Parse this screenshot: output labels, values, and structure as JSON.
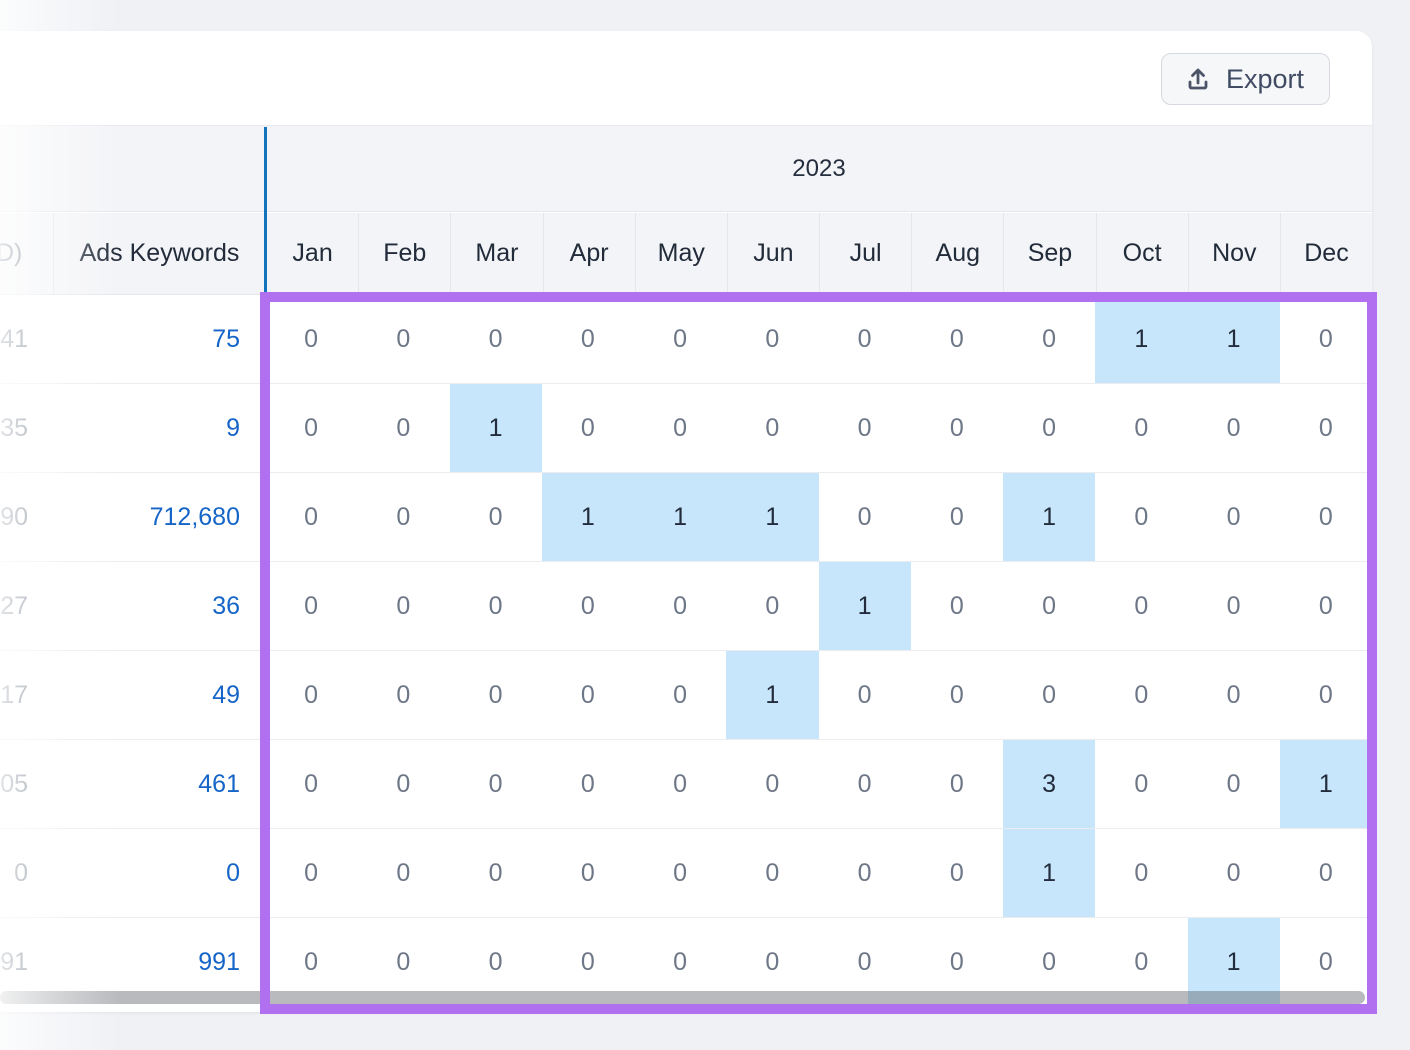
{
  "toolbar": {
    "export_label": "Export"
  },
  "table": {
    "year_label": "2023",
    "clipped_left_header": "D)",
    "ads_keywords_header": "Ads Keywords",
    "months": [
      "Jan",
      "Feb",
      "Mar",
      "Apr",
      "May",
      "Jun",
      "Jul",
      "Aug",
      "Sep",
      "Oct",
      "Nov",
      "Dec"
    ],
    "rows": [
      {
        "clipped_left_value": "41",
        "ads_keywords": "75",
        "monthly": [
          "0",
          "0",
          "0",
          "0",
          "0",
          "0",
          "0",
          "0",
          "0",
          "1",
          "1",
          "0"
        ],
        "highlighted_months": [
          "Oct",
          "Nov"
        ]
      },
      {
        "clipped_left_value": "35",
        "ads_keywords": "9",
        "monthly": [
          "0",
          "0",
          "1",
          "0",
          "0",
          "0",
          "0",
          "0",
          "0",
          "0",
          "0",
          "0"
        ],
        "highlighted_months": [
          "Mar"
        ]
      },
      {
        "clipped_left_value": "90",
        "ads_keywords": "712,680",
        "monthly": [
          "0",
          "0",
          "0",
          "1",
          "1",
          "1",
          "0",
          "0",
          "1",
          "0",
          "0",
          "0"
        ],
        "highlighted_months": [
          "Apr",
          "May",
          "Jun",
          "Sep"
        ]
      },
      {
        "clipped_left_value": "27",
        "ads_keywords": "36",
        "monthly": [
          "0",
          "0",
          "0",
          "0",
          "0",
          "0",
          "1",
          "0",
          "0",
          "0",
          "0",
          "0"
        ],
        "highlighted_months": [
          "Jul"
        ]
      },
      {
        "clipped_left_value": "17",
        "ads_keywords": "49",
        "monthly": [
          "0",
          "0",
          "0",
          "0",
          "0",
          "1",
          "0",
          "0",
          "0",
          "0",
          "0",
          "0"
        ],
        "highlighted_months": [
          "Jun"
        ]
      },
      {
        "clipped_left_value": "05",
        "ads_keywords": "461",
        "monthly": [
          "0",
          "0",
          "0",
          "0",
          "0",
          "0",
          "0",
          "0",
          "3",
          "0",
          "0",
          "1"
        ],
        "highlighted_months": [
          "Sep",
          "Dec"
        ]
      },
      {
        "clipped_left_value": "0",
        "ads_keywords": "0",
        "monthly": [
          "0",
          "0",
          "0",
          "0",
          "0",
          "0",
          "0",
          "0",
          "1",
          "0",
          "0",
          "0"
        ],
        "highlighted_months": [
          "Sep"
        ]
      },
      {
        "clipped_left_value": "91",
        "ads_keywords": "991",
        "monthly": [
          "0",
          "0",
          "0",
          "0",
          "0",
          "0",
          "0",
          "0",
          "0",
          "0",
          "1",
          "0"
        ],
        "highlighted_months": [
          "Nov"
        ]
      }
    ]
  },
  "annotation": {
    "highlight_box_color": "#b170f0"
  },
  "colors": {
    "cell_highlight": "#c8e6fb",
    "link_blue": "#1565c8",
    "column_divider_blue": "#1173bc",
    "header_band_bg": "#f3f4f7"
  }
}
